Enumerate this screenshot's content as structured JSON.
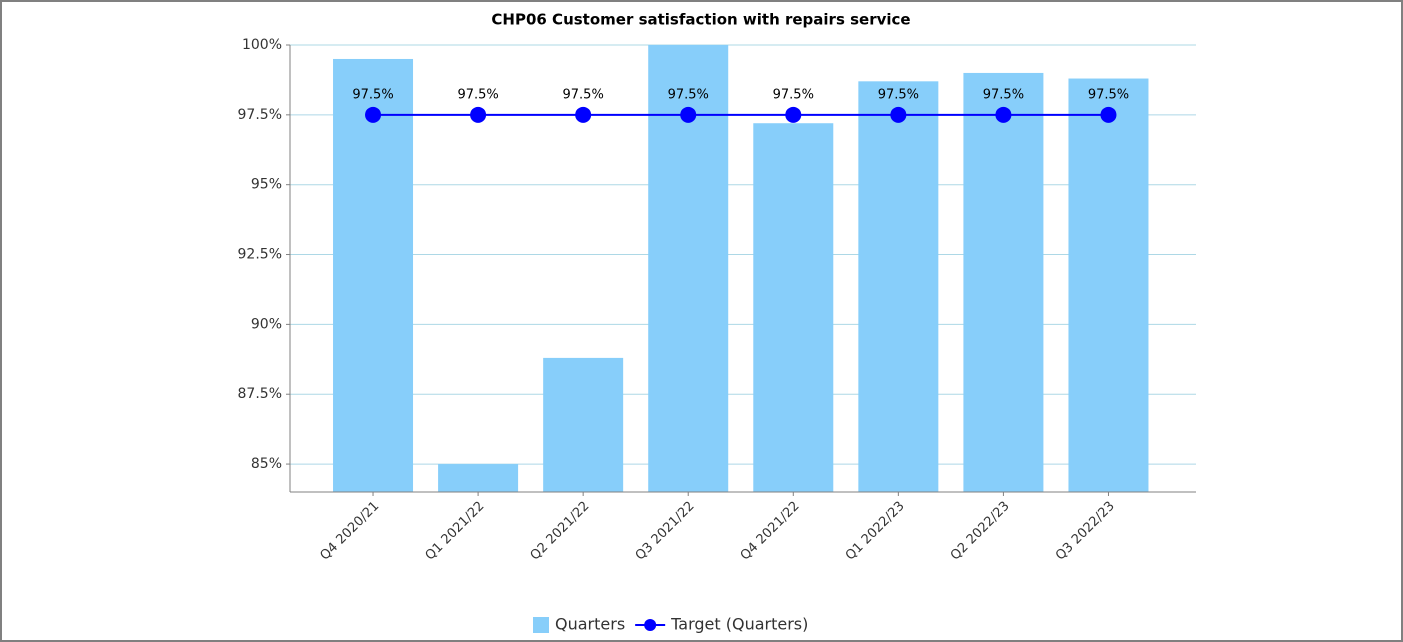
{
  "chart_data": {
    "type": "bar+line",
    "title": "CHP06 Customer satisfaction with repairs service",
    "categories": [
      "Q4 2020/21",
      "Q1 2021/22",
      "Q2 2021/22",
      "Q3 2021/22",
      "Q4 2021/22",
      "Q1 2022/23",
      "Q2 2022/23",
      "Q3 2022/23"
    ],
    "series": [
      {
        "name": "Quarters",
        "type": "bar",
        "color": "#87cefa",
        "values": [
          99.5,
          85.0,
          88.8,
          100,
          97.2,
          98.7,
          99.0,
          98.8
        ]
      },
      {
        "name": "Target (Quarters)",
        "type": "line",
        "color": "#0000ff",
        "values": [
          97.5,
          97.5,
          97.5,
          97.5,
          97.5,
          97.5,
          97.5,
          97.5
        ],
        "value_labels": [
          "97.5%",
          "97.5%",
          "97.5%",
          "97.5%",
          "97.5%",
          "97.5%",
          "97.5%",
          "97.5%"
        ]
      }
    ],
    "ylim": [
      84,
      100
    ],
    "yticks": [
      {
        "value": 85,
        "label": "85%"
      },
      {
        "value": 87.5,
        "label": "87.5%"
      },
      {
        "value": 90,
        "label": "90%"
      },
      {
        "value": 92.5,
        "label": "92.5%"
      },
      {
        "value": 95,
        "label": "95%"
      },
      {
        "value": 97.5,
        "label": "97.5%"
      },
      {
        "value": 100,
        "label": "100%"
      }
    ],
    "grid": true,
    "legend": "bottom"
  }
}
